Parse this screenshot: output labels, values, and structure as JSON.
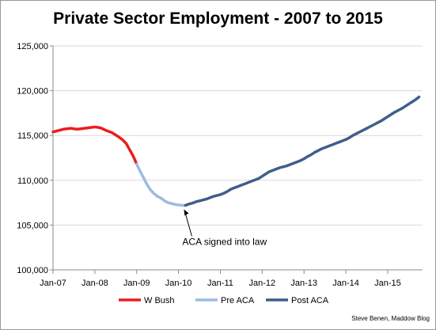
{
  "colors": {
    "w_bush": "#ee1c1c",
    "pre_aca": "#9dbbe0",
    "post_aca": "#3f5f8a",
    "axis": "#8a8a8a",
    "grid": "#d9d9d9"
  },
  "footer": {
    "credit": "Steve Benen, Maddow Blog"
  },
  "chart_data": {
    "type": "line",
    "title": "Private Sector Employment - 2007 to 2015",
    "xlabel": "",
    "ylabel": "",
    "ylim": [
      100000,
      125000
    ],
    "y_ticks": [
      100000,
      105000,
      110000,
      115000,
      120000,
      125000
    ],
    "y_tick_labels": [
      "100,000",
      "105,000",
      "110,000",
      "115,000",
      "120,000",
      "125,000"
    ],
    "x_ticks": [
      "Jan-07",
      "Jan-08",
      "Jan-09",
      "Jan-10",
      "Jan-11",
      "Jan-12",
      "Jan-13",
      "Jan-14",
      "Jan-15"
    ],
    "grid": "horizontal",
    "legend_position": "bottom",
    "series": [
      {
        "name": "W Bush",
        "color": "#ee1c1c",
        "x": [
          "2007-01",
          "2007-02",
          "2007-03",
          "2007-04",
          "2007-05",
          "2007-06",
          "2007-07",
          "2007-08",
          "2007-09",
          "2007-10",
          "2007-11",
          "2007-12",
          "2008-01",
          "2008-02",
          "2008-03",
          "2008-04",
          "2008-05",
          "2008-06",
          "2008-07",
          "2008-08",
          "2008-09",
          "2008-10",
          "2008-11",
          "2008-12",
          "2009-01"
        ],
        "values": [
          115400,
          115500,
          115600,
          115700,
          115750,
          115800,
          115750,
          115700,
          115750,
          115800,
          115850,
          115900,
          115950,
          115900,
          115800,
          115600,
          115450,
          115300,
          115050,
          114800,
          114500,
          114100,
          113400,
          112700,
          111800
        ]
      },
      {
        "name": "Pre ACA",
        "color": "#9dbbe0",
        "x": [
          "2009-01",
          "2009-02",
          "2009-03",
          "2009-04",
          "2009-05",
          "2009-06",
          "2009-07",
          "2009-08",
          "2009-09",
          "2009-10",
          "2009-11",
          "2009-12",
          "2010-01",
          "2010-02",
          "2010-03"
        ],
        "values": [
          111800,
          111000,
          110250,
          109500,
          108900,
          108500,
          108200,
          108000,
          107700,
          107500,
          107400,
          107300,
          107250,
          107200,
          107200
        ]
      },
      {
        "name": "Post ACA",
        "color": "#3f5f8a",
        "x": [
          "2010-03",
          "2010-04",
          "2010-05",
          "2010-06",
          "2010-07",
          "2010-08",
          "2010-09",
          "2010-10",
          "2010-11",
          "2010-12",
          "2011-01",
          "2011-02",
          "2011-03",
          "2011-04",
          "2011-05",
          "2011-06",
          "2011-07",
          "2011-08",
          "2011-09",
          "2011-10",
          "2011-11",
          "2011-12",
          "2012-01",
          "2012-02",
          "2012-03",
          "2012-04",
          "2012-05",
          "2012-06",
          "2012-07",
          "2012-08",
          "2012-09",
          "2012-10",
          "2012-11",
          "2012-12",
          "2013-01",
          "2013-02",
          "2013-03",
          "2013-04",
          "2013-05",
          "2013-06",
          "2013-07",
          "2013-08",
          "2013-09",
          "2013-10",
          "2013-11",
          "2013-12",
          "2014-01",
          "2014-02",
          "2014-03",
          "2014-04",
          "2014-05",
          "2014-06",
          "2014-07",
          "2014-08",
          "2014-09",
          "2014-10",
          "2014-11",
          "2014-12",
          "2015-01",
          "2015-02",
          "2015-03",
          "2015-04",
          "2015-05",
          "2015-06",
          "2015-07",
          "2015-08",
          "2015-09",
          "2015-10"
        ],
        "values": [
          107200,
          107350,
          107450,
          107600,
          107700,
          107800,
          107900,
          108050,
          108200,
          108300,
          108400,
          108550,
          108750,
          109000,
          109150,
          109300,
          109450,
          109600,
          109750,
          109900,
          110050,
          110200,
          110450,
          110700,
          110950,
          111100,
          111250,
          111400,
          111500,
          111600,
          111750,
          111900,
          112050,
          112200,
          112400,
          112650,
          112850,
          113100,
          113300,
          113500,
          113650,
          113800,
          113950,
          114100,
          114250,
          114400,
          114550,
          114750,
          115000,
          115200,
          115400,
          115600,
          115800,
          116000,
          116200,
          116400,
          116600,
          116850,
          117100,
          117350,
          117600,
          117800,
          118000,
          118250,
          118500,
          118750,
          119000,
          119300
        ]
      }
    ],
    "annotations": [
      {
        "text": "ACA signed into law",
        "x": "2010-03",
        "y": 107200
      }
    ]
  }
}
